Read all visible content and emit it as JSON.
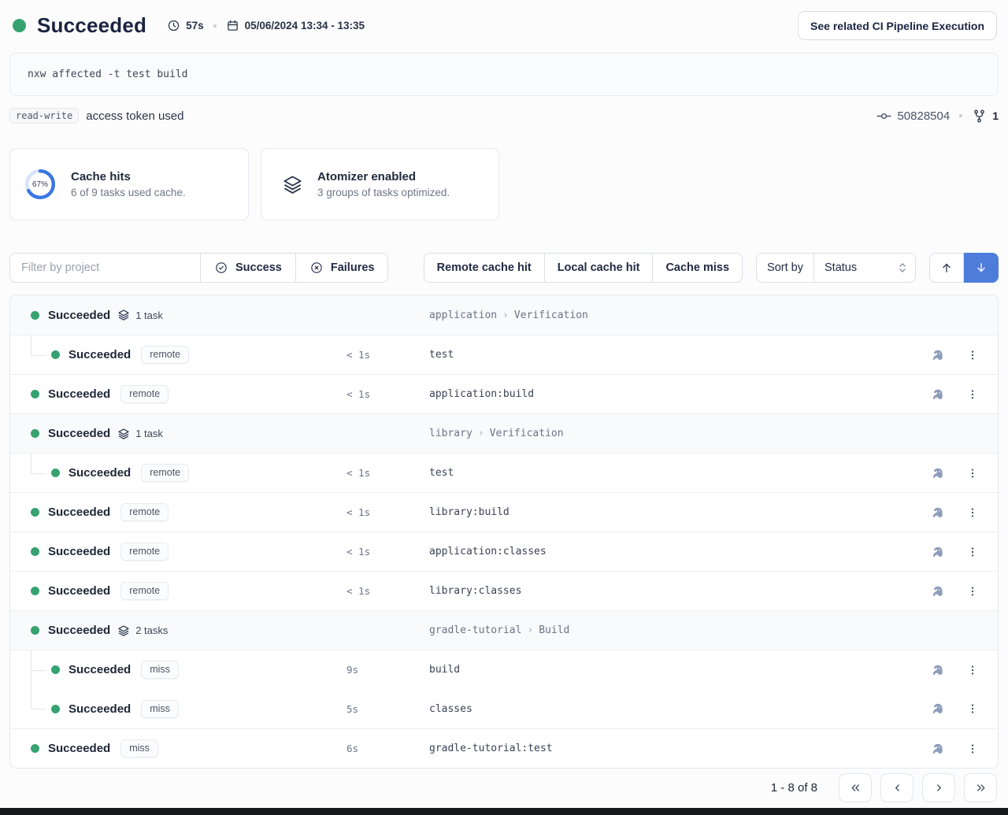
{
  "header": {
    "status": "Succeeded",
    "duration": "57s",
    "date_range": "05/06/2024 13:34 - 13:35",
    "cta": "See related CI Pipeline Execution"
  },
  "command": "nxw affected -t test build",
  "token": {
    "badge": "read-write",
    "text": "access token used",
    "commit": "50828504",
    "branch_count": "1"
  },
  "cards": [
    {
      "title": "Cache hits",
      "subtitle": "6 of 9 tasks used cache.",
      "percent": "67%",
      "percent_value": 67
    },
    {
      "title": "Atomizer enabled",
      "subtitle": "3 groups of tasks optimized."
    }
  ],
  "filters": {
    "placeholder": "Filter by project",
    "success": "Success",
    "failures": "Failures",
    "cache_buttons": [
      "Remote cache hit",
      "Local cache hit",
      "Cache miss"
    ],
    "sort_label": "Sort by",
    "sort_value": "Status"
  },
  "table": {
    "rows": [
      {
        "kind": "group",
        "status": "Succeeded",
        "tasks": "1 task",
        "project": "application",
        "category": "Verification"
      },
      {
        "kind": "task",
        "indent": true,
        "connector": "elbow",
        "status": "Succeeded",
        "badge": "remote",
        "time": "< 1s",
        "name": "test"
      },
      {
        "kind": "task",
        "status": "Succeeded",
        "badge": "remote",
        "time": "< 1s",
        "name": "application:build"
      },
      {
        "kind": "group",
        "status": "Succeeded",
        "tasks": "1 task",
        "project": "library",
        "category": "Verification"
      },
      {
        "kind": "task",
        "indent": true,
        "connector": "elbow",
        "status": "Succeeded",
        "badge": "remote",
        "time": "< 1s",
        "name": "test"
      },
      {
        "kind": "task",
        "status": "Succeeded",
        "badge": "remote",
        "time": "< 1s",
        "name": "library:build"
      },
      {
        "kind": "task",
        "status": "Succeeded",
        "badge": "remote",
        "time": "< 1s",
        "name": "application:classes"
      },
      {
        "kind": "task",
        "status": "Succeeded",
        "badge": "remote",
        "time": "< 1s",
        "name": "library:classes"
      },
      {
        "kind": "group",
        "status": "Succeeded",
        "tasks": "2 tasks",
        "project": "gradle-tutorial",
        "category": "Build"
      },
      {
        "kind": "task",
        "indent": true,
        "connector": "tee",
        "status": "Succeeded",
        "badge": "miss",
        "time": "9s",
        "name": "build"
      },
      {
        "kind": "task",
        "indent": true,
        "connector": "elbow",
        "no_border": true,
        "status": "Succeeded",
        "badge": "miss",
        "time": "5s",
        "name": "classes"
      },
      {
        "kind": "task",
        "status": "Succeeded",
        "badge": "miss",
        "time": "6s",
        "name": "gradle-tutorial:test"
      }
    ]
  },
  "pagination": {
    "range": "1 - 8 of 8"
  },
  "colors": {
    "success_green": "#36a26f",
    "accent_blue": "#4d7cda",
    "donut_blue": "#3a76e3",
    "donut_track": "#d7e3f7"
  }
}
